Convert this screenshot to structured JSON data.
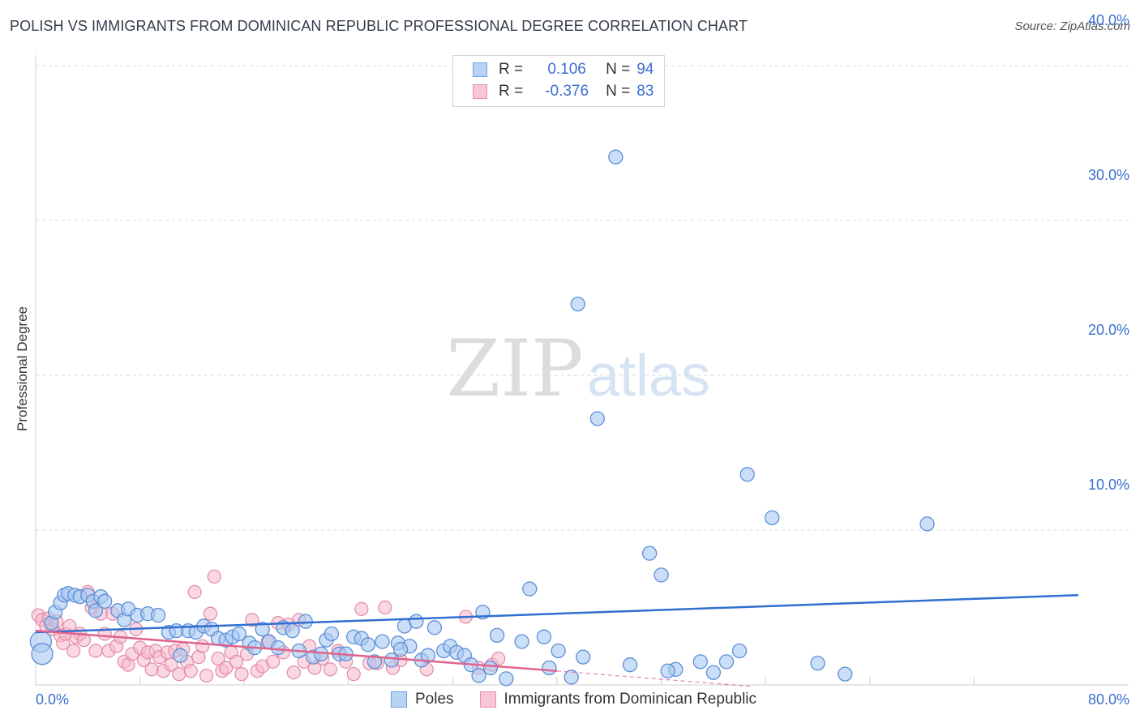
{
  "header": {
    "title": "POLISH VS IMMIGRANTS FROM DOMINICAN REPUBLIC PROFESSIONAL DEGREE CORRELATION CHART",
    "source": "Source: ZipAtlas.com"
  },
  "legend_top": {
    "rows": [
      {
        "r_label": "R =",
        "r_value": "0.106",
        "n_label": "N =",
        "n_value": "94"
      },
      {
        "r_label": "R =",
        "r_value": "-0.376",
        "n_label": "N =",
        "n_value": "83"
      }
    ]
  },
  "watermark": {
    "zip": "ZIP",
    "atlas": "atlas"
  },
  "colors": {
    "blue_fill": "#a9c8f2",
    "blue_stroke": "#5d8fd6",
    "blue_line": "#2f6fcf",
    "pink_fill": "#f6b8cb",
    "pink_stroke": "#e28aa7",
    "pink_line": "#e0638e",
    "axis_text": "#3b6fd1",
    "grid": "#d9d9d9"
  },
  "chart_data": {
    "type": "scatter",
    "title": "POLISH VS IMMIGRANTS FROM DOMINICAN REPUBLIC PROFESSIONAL DEGREE CORRELATION CHART",
    "xlabel": "",
    "ylabel": "Professional Degree",
    "xlim": [
      0,
      80
    ],
    "ylim": [
      0,
      41
    ],
    "x_tick_labels": [
      "0.0%",
      "80.0%"
    ],
    "y_ticks": [
      10,
      20,
      30,
      40
    ],
    "y_tick_labels": [
      "10.0%",
      "20.0%",
      "30.0%",
      "40.0%"
    ],
    "grid": true,
    "legend_position": "bottom-center",
    "series": [
      {
        "name": "Poles",
        "color": "blue",
        "r": 0.106,
        "n": 94,
        "trend": {
          "x": [
            0,
            80
          ],
          "y": [
            3.4,
            5.8
          ]
        },
        "points": [
          [
            0.4,
            2.8
          ],
          [
            0.5,
            2.0
          ],
          [
            1.2,
            4.0
          ],
          [
            1.5,
            4.7
          ],
          [
            1.9,
            5.3
          ],
          [
            2.2,
            5.8
          ],
          [
            2.5,
            5.9
          ],
          [
            3.0,
            5.8
          ],
          [
            3.4,
            5.7
          ],
          [
            4.0,
            5.8
          ],
          [
            4.4,
            5.4
          ],
          [
            4.6,
            4.8
          ],
          [
            5.0,
            5.7
          ],
          [
            5.3,
            5.4
          ],
          [
            6.3,
            4.8
          ],
          [
            6.8,
            4.2
          ],
          [
            7.1,
            4.9
          ],
          [
            7.8,
            4.5
          ],
          [
            8.6,
            4.6
          ],
          [
            9.4,
            4.5
          ],
          [
            10.2,
            3.4
          ],
          [
            10.8,
            3.5
          ],
          [
            11.7,
            3.5
          ],
          [
            12.3,
            3.4
          ],
          [
            12.9,
            3.8
          ],
          [
            13.5,
            3.6
          ],
          [
            14.0,
            3.0
          ],
          [
            14.6,
            2.9
          ],
          [
            15.1,
            3.1
          ],
          [
            15.6,
            3.3
          ],
          [
            16.4,
            2.7
          ],
          [
            16.8,
            2.4
          ],
          [
            17.4,
            3.6
          ],
          [
            17.9,
            2.8
          ],
          [
            18.6,
            2.4
          ],
          [
            19.0,
            3.7
          ],
          [
            19.7,
            3.5
          ],
          [
            20.2,
            2.2
          ],
          [
            20.7,
            4.1
          ],
          [
            21.3,
            1.8
          ],
          [
            21.9,
            2.0
          ],
          [
            22.3,
            2.9
          ],
          [
            22.7,
            3.3
          ],
          [
            23.3,
            2.0
          ],
          [
            23.8,
            2.0
          ],
          [
            24.4,
            3.1
          ],
          [
            25.0,
            3.0
          ],
          [
            25.5,
            2.6
          ],
          [
            26.0,
            1.5
          ],
          [
            26.6,
            2.8
          ],
          [
            27.3,
            1.6
          ],
          [
            27.8,
            2.7
          ],
          [
            28.3,
            3.8
          ],
          [
            28.7,
            2.5
          ],
          [
            29.2,
            4.1
          ],
          [
            29.6,
            1.6
          ],
          [
            30.1,
            1.9
          ],
          [
            30.6,
            3.7
          ],
          [
            31.3,
            2.2
          ],
          [
            31.8,
            2.5
          ],
          [
            32.3,
            2.1
          ],
          [
            32.9,
            1.9
          ],
          [
            33.4,
            1.3
          ],
          [
            34.0,
            0.6
          ],
          [
            34.3,
            4.7
          ],
          [
            34.9,
            1.1
          ],
          [
            35.4,
            3.2
          ],
          [
            36.1,
            0.4
          ],
          [
            37.3,
            2.8
          ],
          [
            37.9,
            6.2
          ],
          [
            39.4,
            1.1
          ],
          [
            40.1,
            2.2
          ],
          [
            41.1,
            0.5
          ],
          [
            41.6,
            24.6
          ],
          [
            43.1,
            17.2
          ],
          [
            44.5,
            34.1
          ],
          [
            45.6,
            1.3
          ],
          [
            47.1,
            8.5
          ],
          [
            48.0,
            7.1
          ],
          [
            49.1,
            1.0
          ],
          [
            51.0,
            1.5
          ],
          [
            52.0,
            0.8
          ],
          [
            53.0,
            1.5
          ],
          [
            54.0,
            2.2
          ],
          [
            54.6,
            13.6
          ],
          [
            56.5,
            10.8
          ],
          [
            60.0,
            1.4
          ],
          [
            62.1,
            0.7
          ],
          [
            68.4,
            10.4
          ],
          [
            48.5,
            0.9
          ],
          [
            42.0,
            1.8
          ],
          [
            11.1,
            1.9
          ],
          [
            39.0,
            3.1
          ],
          [
            28.0,
            2.3
          ]
        ]
      },
      {
        "name": "Immigrants from Dominican Republic",
        "color": "pink",
        "r": -0.376,
        "n": 83,
        "trend": {
          "x": [
            0,
            40,
            55
          ],
          "y": [
            3.5,
            0.9,
            -0.1
          ]
        },
        "points": [
          [
            0.2,
            4.5
          ],
          [
            0.5,
            4.2
          ],
          [
            0.8,
            3.8
          ],
          [
            1.0,
            4.3
          ],
          [
            1.3,
            3.6
          ],
          [
            1.6,
            4.1
          ],
          [
            1.9,
            3.2
          ],
          [
            2.1,
            2.7
          ],
          [
            2.3,
            3.3
          ],
          [
            2.6,
            3.8
          ],
          [
            2.9,
            2.2
          ],
          [
            3.1,
            3.1
          ],
          [
            3.4,
            3.3
          ],
          [
            3.7,
            2.9
          ],
          [
            4.0,
            6.0
          ],
          [
            4.3,
            5.0
          ],
          [
            4.6,
            2.2
          ],
          [
            5.0,
            4.6
          ],
          [
            5.3,
            3.3
          ],
          [
            5.6,
            2.2
          ],
          [
            5.9,
            4.6
          ],
          [
            6.2,
            2.5
          ],
          [
            6.5,
            3.1
          ],
          [
            6.8,
            1.5
          ],
          [
            7.1,
            1.3
          ],
          [
            7.4,
            2.0
          ],
          [
            7.7,
            3.6
          ],
          [
            8.0,
            2.4
          ],
          [
            8.3,
            1.6
          ],
          [
            8.6,
            2.1
          ],
          [
            8.9,
            1.0
          ],
          [
            9.2,
            2.2
          ],
          [
            9.5,
            1.8
          ],
          [
            9.8,
            0.9
          ],
          [
            10.1,
            2.1
          ],
          [
            10.4,
            1.3
          ],
          [
            10.7,
            2.2
          ],
          [
            11.0,
            0.7
          ],
          [
            11.3,
            2.3
          ],
          [
            11.6,
            1.5
          ],
          [
            11.9,
            0.9
          ],
          [
            12.2,
            6.0
          ],
          [
            12.5,
            1.8
          ],
          [
            12.8,
            2.5
          ],
          [
            13.1,
            0.6
          ],
          [
            13.4,
            4.6
          ],
          [
            13.7,
            7.0
          ],
          [
            14.0,
            1.7
          ],
          [
            14.3,
            0.9
          ],
          [
            14.6,
            1.1
          ],
          [
            15.0,
            2.1
          ],
          [
            15.4,
            1.5
          ],
          [
            15.8,
            0.7
          ],
          [
            16.2,
            2.0
          ],
          [
            16.6,
            4.2
          ],
          [
            17.0,
            0.9
          ],
          [
            17.4,
            1.2
          ],
          [
            17.8,
            2.8
          ],
          [
            18.2,
            1.5
          ],
          [
            18.6,
            4.0
          ],
          [
            19.0,
            2.1
          ],
          [
            19.4,
            3.9
          ],
          [
            19.8,
            0.8
          ],
          [
            20.2,
            4.2
          ],
          [
            20.6,
            1.5
          ],
          [
            21.0,
            2.5
          ],
          [
            21.4,
            1.1
          ],
          [
            22.0,
            1.7
          ],
          [
            22.6,
            1.0
          ],
          [
            23.2,
            2.2
          ],
          [
            23.8,
            1.5
          ],
          [
            24.4,
            0.7
          ],
          [
            25.0,
            4.9
          ],
          [
            25.6,
            1.4
          ],
          [
            26.2,
            1.4
          ],
          [
            26.8,
            5.0
          ],
          [
            27.4,
            1.1
          ],
          [
            28.0,
            1.6
          ],
          [
            30.0,
            1.0
          ],
          [
            33.0,
            4.4
          ],
          [
            34.0,
            1.1
          ],
          [
            35.0,
            1.3
          ],
          [
            35.5,
            1.7
          ]
        ]
      }
    ]
  },
  "legend_bottom": {
    "items": [
      "Poles",
      "Immigrants from Dominican Republic"
    ]
  }
}
